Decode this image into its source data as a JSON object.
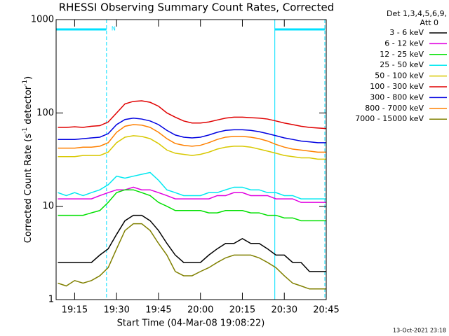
{
  "chart_data": {
    "type": "line",
    "title": "RHESSI Observing Summary Count Rates, Corrected",
    "x_label": "Start Time (04-Mar-08 19:08:22)",
    "y_label_parts": [
      "Corrected Count Rate (s",
      "-1",
      " detector",
      "-1",
      ")"
    ],
    "legend_header": [
      "Det 1,3,4,5,6,9,",
      "Att 0"
    ],
    "footer": "13-Oct-2021 23:18",
    "log_y": true,
    "xlim": [
      1148.37,
      1245
    ],
    "ylim": [
      1,
      1000
    ],
    "xticks": [
      {
        "value": 1155,
        "label": "19:15"
      },
      {
        "value": 1170,
        "label": "19:30"
      },
      {
        "value": 1185,
        "label": "19:45"
      },
      {
        "value": 1200,
        "label": "20:00"
      },
      {
        "value": 1215,
        "label": "20:15"
      },
      {
        "value": 1230,
        "label": "20:30"
      },
      {
        "value": 1245,
        "label": "20:45"
      }
    ],
    "yticks": [
      1,
      10,
      100,
      1000
    ],
    "night_intervals": [
      [
        1148.37,
        1166.4
      ],
      [
        1226.6,
        1244.5
      ]
    ],
    "night_label": "N",
    "night_color": "#00e0ff",
    "x": [
      1149,
      1152,
      1155,
      1158,
      1161,
      1164,
      1167,
      1170,
      1173,
      1176,
      1179,
      1182,
      1185,
      1188,
      1191,
      1194,
      1197,
      1200,
      1203,
      1206,
      1209,
      1212,
      1215,
      1218,
      1221,
      1224,
      1227,
      1230,
      1233,
      1236,
      1239,
      1242,
      1245
    ],
    "series": [
      {
        "name": "3 - 6 keV",
        "color": "#000000",
        "values": [
          2.5,
          2.5,
          2.5,
          2.5,
          2.5,
          3,
          3.5,
          5,
          7,
          8,
          8,
          7,
          5.5,
          4,
          3,
          2.5,
          2.5,
          2.5,
          3,
          3.5,
          4,
          4,
          4.5,
          4,
          4,
          3.5,
          3,
          3,
          2.5,
          2.5,
          2,
          2,
          2
        ]
      },
      {
        "name": "6 - 12 keV",
        "color": "#e000e0",
        "values": [
          12,
          12,
          12,
          12,
          12,
          13,
          14,
          15,
          15,
          16,
          15,
          15,
          14,
          13,
          12,
          12,
          12,
          12,
          12,
          13,
          13,
          14,
          14,
          13,
          13,
          13,
          12,
          12,
          12,
          11,
          11,
          11,
          11
        ]
      },
      {
        "name": "12 - 25 keV",
        "color": "#00e000",
        "values": [
          8,
          8,
          8,
          8,
          8.5,
          9,
          11,
          14,
          15,
          15,
          14,
          13,
          11,
          10,
          9,
          9,
          9,
          9,
          8.5,
          8.5,
          9,
          9,
          9,
          8.5,
          8.5,
          8,
          8,
          7.5,
          7.5,
          7,
          7,
          7,
          7
        ]
      },
      {
        "name": "25 - 50 keV",
        "color": "#00e8f0",
        "values": [
          14,
          13,
          14,
          13,
          14,
          15,
          17,
          21,
          20,
          21,
          22,
          23,
          19,
          15,
          14,
          13,
          13,
          13,
          14,
          14,
          15,
          16,
          16,
          15,
          15,
          14,
          14,
          13,
          13,
          12,
          12,
          12,
          12
        ]
      },
      {
        "name": "50 - 100 keV",
        "color": "#d8c800",
        "values": [
          34,
          34,
          34,
          35,
          35,
          35,
          38,
          48,
          55,
          57,
          56,
          53,
          47,
          40,
          37,
          36,
          35,
          36,
          38,
          41,
          43,
          44,
          44,
          43,
          41,
          39,
          37,
          35,
          34,
          33,
          33,
          32,
          32
        ]
      },
      {
        "name": "100 - 300 keV",
        "color": "#e00000",
        "values": [
          70,
          70,
          71,
          70,
          72,
          73,
          80,
          100,
          125,
          133,
          135,
          130,
          118,
          100,
          90,
          82,
          78,
          78,
          80,
          84,
          88,
          90,
          90,
          89,
          88,
          86,
          82,
          78,
          75,
          72,
          70,
          69,
          68
        ]
      },
      {
        "name": "300 - 800 keV",
        "color": "#0000e0",
        "values": [
          52,
          52,
          52,
          53,
          54,
          55,
          60,
          75,
          85,
          88,
          86,
          82,
          75,
          65,
          58,
          55,
          54,
          55,
          58,
          62,
          65,
          66,
          66,
          65,
          63,
          60,
          57,
          54,
          52,
          50,
          49,
          48,
          48
        ]
      },
      {
        "name": "800 - 7000 keV",
        "color": "#ff8000",
        "values": [
          42,
          42,
          42,
          43,
          43,
          44,
          48,
          62,
          72,
          75,
          74,
          70,
          62,
          53,
          47,
          45,
          44,
          45,
          48,
          52,
          55,
          56,
          56,
          55,
          53,
          50,
          46,
          43,
          41,
          40,
          39,
          38,
          38
        ]
      },
      {
        "name": "7000 - 15000 keV",
        "color": "#808000",
        "values": [
          1.5,
          1.4,
          1.6,
          1.5,
          1.6,
          1.8,
          2.2,
          3.5,
          5.5,
          6.5,
          6.5,
          5.5,
          4,
          3,
          2,
          1.8,
          1.8,
          2,
          2.2,
          2.5,
          2.8,
          3,
          3,
          3,
          2.8,
          2.5,
          2.2,
          1.8,
          1.5,
          1.4,
          1.3,
          1.3,
          1.3
        ]
      }
    ]
  }
}
